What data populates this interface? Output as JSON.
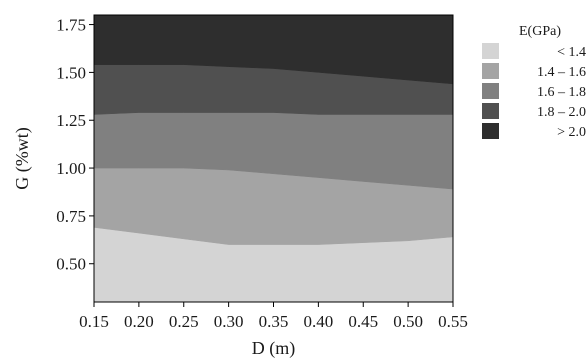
{
  "chart_data": {
    "type": "contour",
    "title": "",
    "xlabel": "D (m)",
    "ylabel": "G (%wt)",
    "xlim": [
      0.15,
      0.55
    ],
    "ylim": [
      0.3,
      1.8
    ],
    "x_ticks": [
      "0.15",
      "0.20",
      "0.25",
      "0.30",
      "0.35",
      "0.40",
      "0.45",
      "0.50",
      "0.55"
    ],
    "y_ticks": [
      "1.75",
      "1.50",
      "1.25",
      "1.00",
      "0.75",
      "0.50"
    ],
    "legend": {
      "title": "E(GPa)",
      "placement": "right",
      "entries": [
        {
          "label": "< 1.4",
          "color": "#d4d4d4"
        },
        {
          "label": "1.4 – 1.6",
          "color": "#a4a4a4"
        },
        {
          "label": "1.6 – 1.8",
          "color": "#808080"
        },
        {
          "label": "1.8 – 2.0",
          "color": "#505050"
        },
        {
          "label": "> 2.0",
          "color": "#2e2e2e"
        }
      ]
    },
    "contour_boundaries": [
      {
        "level": "1.4",
        "points": [
          [
            0.15,
            0.69
          ],
          [
            0.2,
            0.66
          ],
          [
            0.25,
            0.63
          ],
          [
            0.3,
            0.6
          ],
          [
            0.35,
            0.6
          ],
          [
            0.4,
            0.6
          ],
          [
            0.45,
            0.61
          ],
          [
            0.5,
            0.62
          ],
          [
            0.55,
            0.64
          ]
        ]
      },
      {
        "level": "1.6",
        "points": [
          [
            0.15,
            1.0
          ],
          [
            0.2,
            1.0
          ],
          [
            0.25,
            1.0
          ],
          [
            0.3,
            0.99
          ],
          [
            0.35,
            0.97
          ],
          [
            0.4,
            0.95
          ],
          [
            0.45,
            0.93
          ],
          [
            0.5,
            0.91
          ],
          [
            0.55,
            0.89
          ]
        ]
      },
      {
        "level": "1.8",
        "points": [
          [
            0.15,
            1.28
          ],
          [
            0.2,
            1.29
          ],
          [
            0.25,
            1.29
          ],
          [
            0.3,
            1.29
          ],
          [
            0.35,
            1.29
          ],
          [
            0.4,
            1.28
          ],
          [
            0.45,
            1.28
          ],
          [
            0.5,
            1.28
          ],
          [
            0.55,
            1.28
          ]
        ]
      },
      {
        "level": "2.0",
        "points": [
          [
            0.15,
            1.54
          ],
          [
            0.2,
            1.54
          ],
          [
            0.25,
            1.54
          ],
          [
            0.3,
            1.53
          ],
          [
            0.35,
            1.52
          ],
          [
            0.4,
            1.5
          ],
          [
            0.45,
            1.48
          ],
          [
            0.5,
            1.46
          ],
          [
            0.55,
            1.44
          ]
        ]
      }
    ]
  }
}
